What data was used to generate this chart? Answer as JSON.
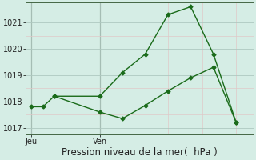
{
  "line1_x": [
    0,
    1,
    2,
    6,
    8,
    10,
    12,
    14,
    16,
    18
  ],
  "line1_y": [
    1017.8,
    1017.8,
    1018.2,
    1018.2,
    1019.1,
    1019.8,
    1021.3,
    1021.6,
    1019.8,
    1017.2
  ],
  "line2_x": [
    2,
    6,
    8,
    10,
    12,
    14,
    16,
    18
  ],
  "line2_y": [
    1018.2,
    1017.6,
    1017.35,
    1017.85,
    1018.4,
    1018.9,
    1019.3,
    1017.2
  ],
  "color": "#1a6b1a",
  "bg_color": "#d5ede5",
  "grid_major_color": "#aec8c0",
  "grid_minor_color": "#e0c8c8",
  "ylim": [
    1016.75,
    1021.75
  ],
  "yticks": [
    1017,
    1018,
    1019,
    1020,
    1021
  ],
  "xlim": [
    -0.5,
    19.5
  ],
  "day_positions": [
    0.3,
    6.3
  ],
  "day_labels": [
    "Jeu",
    "Ven"
  ],
  "day_vline_x": [
    0,
    6
  ],
  "xlabel": "Pression niveau de la mer(  hPa )",
  "xlabel_fontsize": 8.5,
  "tick_fontsize": 7,
  "line_width": 1.0,
  "marker": "D",
  "marker_size": 2.5
}
